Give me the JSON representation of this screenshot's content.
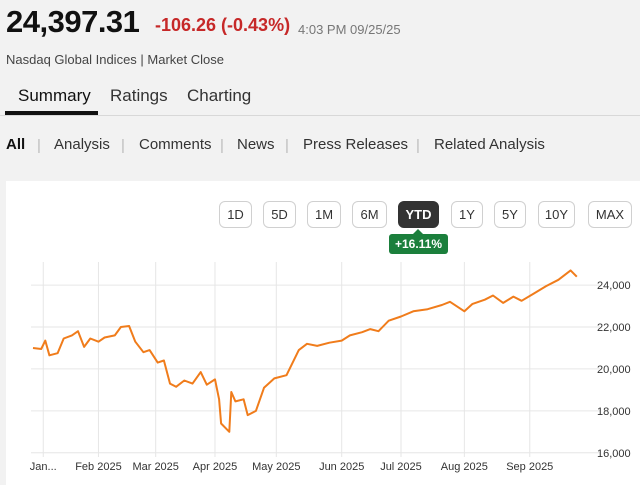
{
  "quote": {
    "price": "24,397.31",
    "change": "-106.26 (-0.43%)",
    "time": "4:03 PM 09/25/25",
    "subtitle": "Nasdaq Global Indices | Market Close"
  },
  "tabs": [
    {
      "label": "Summary",
      "active": true
    },
    {
      "label": "Ratings",
      "active": false
    },
    {
      "label": "Charting",
      "active": false
    }
  ],
  "subnav": [
    {
      "label": "All",
      "active": true
    },
    {
      "label": "Analysis",
      "active": false
    },
    {
      "label": "Comments",
      "active": false
    },
    {
      "label": "News",
      "active": false
    },
    {
      "label": "Press Releases",
      "active": false
    },
    {
      "label": "Related Analysis",
      "active": false
    }
  ],
  "ranges": [
    {
      "label": "1D",
      "active": false
    },
    {
      "label": "5D",
      "active": false
    },
    {
      "label": "1M",
      "active": false
    },
    {
      "label": "6M",
      "active": false
    },
    {
      "label": "YTD",
      "active": true
    },
    {
      "label": "1Y",
      "active": false
    },
    {
      "label": "5Y",
      "active": false
    },
    {
      "label": "10Y",
      "active": false
    },
    {
      "label": "MAX",
      "active": false
    }
  ],
  "performance": "+16.11%",
  "colors": {
    "line": "#f07c1b",
    "negative": "#c62828",
    "positive_badge": "#1b7f3c",
    "grid": "#e6e6e6"
  },
  "chart_data": {
    "type": "line",
    "title": "",
    "xlabel": "",
    "ylabel": "",
    "ylim": [
      15800,
      25100
    ],
    "y_ticks": [
      16000,
      18000,
      20000,
      22000,
      24000
    ],
    "y_tick_labels": [
      "16,000",
      "18,000",
      "20,000",
      "22,000",
      "24,000"
    ],
    "x_tick_labels": [
      "Jan...",
      "Feb 2025",
      "Mar 2025",
      "Apr 2025",
      "May 2025",
      "Jun 2025",
      "Jul 2025",
      "Aug 2025",
      "Sep 2025"
    ],
    "x_tick_dates": [
      "2025-01-07",
      "2025-02-03",
      "2025-03-03",
      "2025-04-01",
      "2025-05-01",
      "2025-06-02",
      "2025-07-01",
      "2025-08-01",
      "2025-09-02"
    ],
    "grid": true,
    "series": [
      {
        "x": [
          "2025-01-02",
          "2025-01-06",
          "2025-01-08",
          "2025-01-10",
          "2025-01-14",
          "2025-01-17",
          "2025-01-21",
          "2025-01-24",
          "2025-01-27",
          "2025-01-30",
          "2025-02-03",
          "2025-02-06",
          "2025-02-11",
          "2025-02-14",
          "2025-02-18",
          "2025-02-21",
          "2025-02-25",
          "2025-02-28",
          "2025-03-04",
          "2025-03-07",
          "2025-03-10",
          "2025-03-13",
          "2025-03-17",
          "2025-03-21",
          "2025-03-25",
          "2025-03-28",
          "2025-04-01",
          "2025-04-03",
          "2025-04-04",
          "2025-04-07",
          "2025-04-08",
          "2025-04-09",
          "2025-04-11",
          "2025-04-15",
          "2025-04-17",
          "2025-04-21",
          "2025-04-25",
          "2025-04-30",
          "2025-05-06",
          "2025-05-12",
          "2025-05-16",
          "2025-05-21",
          "2025-05-27",
          "2025-06-02",
          "2025-06-06",
          "2025-06-12",
          "2025-06-16",
          "2025-06-20",
          "2025-06-25",
          "2025-07-01",
          "2025-07-07",
          "2025-07-14",
          "2025-07-21",
          "2025-07-25",
          "2025-08-01",
          "2025-08-05",
          "2025-08-11",
          "2025-08-15",
          "2025-08-20",
          "2025-08-25",
          "2025-08-29",
          "2025-09-04",
          "2025-09-10",
          "2025-09-16",
          "2025-09-22",
          "2025-09-25"
        ],
        "values": [
          21000,
          20950,
          21350,
          20650,
          20750,
          21450,
          21600,
          21800,
          21050,
          21450,
          21300,
          21500,
          21600,
          22000,
          22050,
          21300,
          20800,
          20900,
          20300,
          20400,
          19300,
          19150,
          19450,
          19300,
          19850,
          19250,
          19500,
          18550,
          17400,
          17100,
          17000,
          18900,
          18450,
          18550,
          17800,
          18000,
          19100,
          19550,
          19700,
          20900,
          21200,
          21100,
          21250,
          21350,
          21600,
          21750,
          21900,
          21800,
          22300,
          22500,
          22750,
          22850,
          23050,
          23200,
          22750,
          23100,
          23300,
          23500,
          23150,
          23450,
          23250,
          23600,
          23950,
          24250,
          24700,
          24400
        ]
      }
    ]
  }
}
